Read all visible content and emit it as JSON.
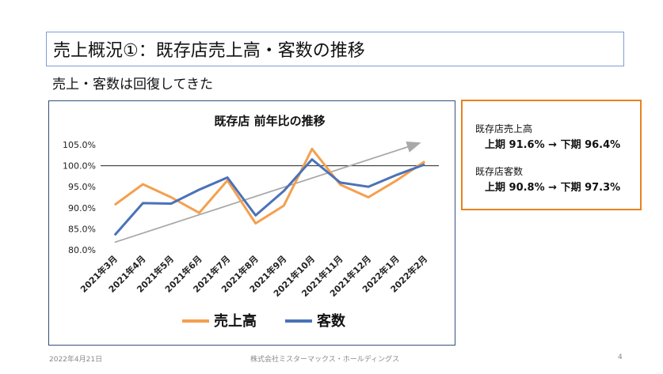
{
  "slide": {
    "title": "売上概況①：既存店売上高・客数の推移",
    "subtitle": "売上・客数は回復してきた",
    "footer_date": "2022年4月21日",
    "footer_company": "株式会社ミスターマックス・ホールディングス",
    "page_number": "4"
  },
  "info_box": {
    "sales_label": "既存店売上高",
    "sales_value": "上期 91.6% → 下期 96.4%",
    "customers_label": "既存店客数",
    "customers_value": "上期 90.8% → 下期 97.3%"
  },
  "chart_data": {
    "type": "line",
    "title": "既存店 前年比の推移",
    "categories": [
      "2021年3月",
      "2021年4月",
      "2021年5月",
      "2021年6月",
      "2021年7月",
      "2021年8月",
      "2021年9月",
      "2021年10月",
      "2021年11月",
      "2021年12月",
      "2022年1月",
      "2022年2月"
    ],
    "series": [
      {
        "name": "売上高",
        "color": "#f4a04e",
        "values": [
          90.7,
          95.6,
          92.5,
          88.8,
          96.5,
          86.3,
          90.5,
          104.0,
          95.5,
          92.5,
          96.5,
          101.0
        ]
      },
      {
        "name": "客数",
        "color": "#4a72b8",
        "values": [
          83.5,
          91.1,
          91.0,
          94.3,
          97.2,
          88.2,
          94.0,
          101.5,
          96.0,
          95.0,
          97.8,
          100.3
        ]
      }
    ],
    "yticks": [
      "105.0%",
      "100.0%",
      "95.0%",
      "90.0%",
      "85.0%",
      "80.0%"
    ],
    "ylim": [
      80,
      105
    ],
    "reference_line": 100,
    "trend_arrow": {
      "from": [
        0,
        81.8
      ],
      "to": [
        11,
        105.3
      ]
    },
    "legend_position": "bottom"
  }
}
